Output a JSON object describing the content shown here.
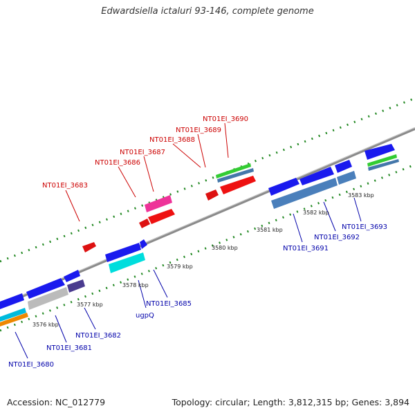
{
  "title": "Edwardsiella ictaluri 93-146, complete genome",
  "footer": {
    "accession": "Accession: NC_012779",
    "topology": "Topology: circular; Length: 3,812,315 bp; Genes: 3,894"
  },
  "colors": {
    "red_label": "#cc0000",
    "blue_label": "#0000aa",
    "backbone": "#808080",
    "ticks": "#228822"
  },
  "kbp_ticks": [
    "3576 kbp",
    "3577 kbp",
    "3578 kbp",
    "3579 kbp",
    "3580 kbp",
    "3581 kbp",
    "3582 kbp",
    "3583 kbp"
  ],
  "gene_labels": {
    "forward": [
      "NT01EI_3683",
      "NT01EI_3686",
      "NT01EI_3687",
      "NT01EI_3688",
      "NT01EI_3689",
      "NT01EI_3690"
    ],
    "reverse": [
      "NT01EI_3680",
      "NT01EI_3681",
      "NT01EI_3682",
      "NT01EI_3685",
      "ugpQ",
      "NT01EI_3691",
      "NT01EI_3692",
      "NT01EI_3693"
    ]
  }
}
